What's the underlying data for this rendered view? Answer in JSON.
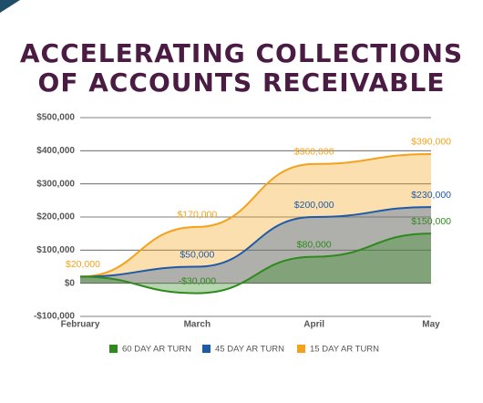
{
  "chart_data": {
    "type": "area",
    "title_lines": [
      "ACCELERATING COLLECTIONS",
      "OF ACCOUNTS RECEIVABLE"
    ],
    "categories": [
      "February",
      "March",
      "April",
      "May"
    ],
    "series": [
      {
        "name": "15 DAY AR TURN",
        "color": "#f5a21b",
        "values": [
          20000,
          170000,
          360000,
          390000
        ],
        "value_labels": [
          "$20,000",
          "$170,000",
          "$360,000",
          "$390,000"
        ]
      },
      {
        "name": "45 DAY AR TURN",
        "color": "#1f5aa6",
        "values": [
          20000,
          50000,
          200000,
          230000
        ],
        "value_labels": [
          null,
          "$50,000",
          "$200,000",
          "$230,000"
        ]
      },
      {
        "name": "60 DAY AR TURN",
        "color": "#2e8a1c",
        "values": [
          20000,
          -30000,
          80000,
          150000
        ],
        "value_labels": [
          null,
          "-$30,000",
          "$80,000",
          "$150,000"
        ]
      }
    ],
    "ylim": [
      -100000,
      500000
    ],
    "yticks": [
      {
        "value": -100000,
        "label": "-$100,000"
      },
      {
        "value": 0,
        "label": "$0"
      },
      {
        "value": 100000,
        "label": "$100,000"
      },
      {
        "value": 200000,
        "label": "$200,000"
      },
      {
        "value": 300000,
        "label": "$300,000"
      },
      {
        "value": 400000,
        "label": "$400,000"
      },
      {
        "value": 500000,
        "label": "$500,000"
      }
    ],
    "grid": true
  }
}
